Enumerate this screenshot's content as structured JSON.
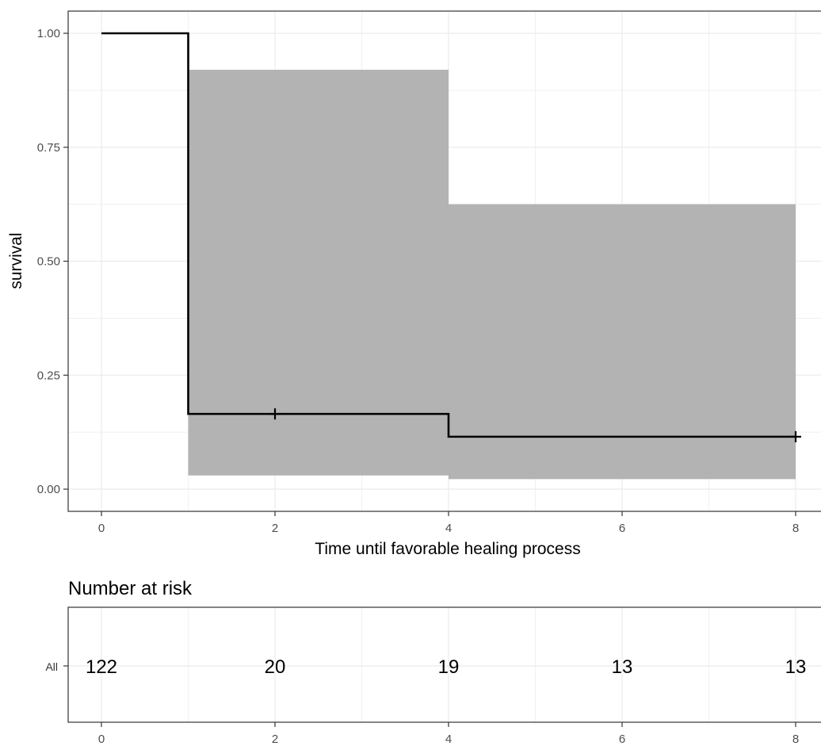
{
  "chart_data": [
    {
      "type": "line",
      "subtype": "kaplan-meier step curve with confidence band",
      "title": "",
      "xlabel": "Time until favorable healing process",
      "ylabel": "survival",
      "xlim": [
        0,
        8
      ],
      "ylim": [
        0,
        1
      ],
      "x_ticks": [
        0,
        2,
        4,
        6,
        8
      ],
      "x_tick_labels": [
        "0",
        "2",
        "4",
        "6",
        "8"
      ],
      "y_ticks": [
        0,
        0.25,
        0.5,
        0.75,
        1
      ],
      "y_tick_labels": [
        "0.00",
        "0.25",
        "0.50",
        "0.75",
        "1.00"
      ],
      "grid": true,
      "legend": "none",
      "series": [
        {
          "steps": [
            {
              "x": 0,
              "y": 1.0
            },
            {
              "x": 1,
              "y": 0.165
            },
            {
              "x": 4,
              "y": 0.115
            },
            {
              "x": 8,
              "y": 0.115
            }
          ],
          "confidence_band": [
            {
              "x_start": 1,
              "x_end": 4,
              "lower": 0.03,
              "upper": 0.92
            },
            {
              "x_start": 4,
              "x_end": 8,
              "lower": 0.022,
              "upper": 0.625
            }
          ],
          "censored": [
            {
              "x": 2,
              "y": 0.165
            },
            {
              "x": 8,
              "y": 0.115
            }
          ]
        }
      ],
      "colors": {
        "line": "#000000",
        "band": "#b3b3b3",
        "grid": "#ebebeb"
      }
    },
    {
      "type": "table",
      "title": "Number at risk",
      "row_label": "All",
      "x_ticks": [
        0,
        2,
        4,
        6,
        8
      ],
      "x_tick_labels": [
        "0",
        "2",
        "4",
        "6",
        "8"
      ],
      "values": [
        122,
        20,
        19,
        13,
        13
      ]
    }
  ]
}
